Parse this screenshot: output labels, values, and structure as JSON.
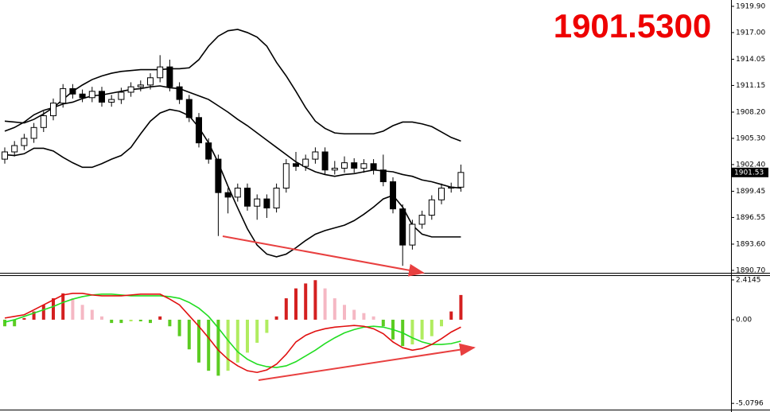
{
  "chart_data": [
    {
      "type": "candlestick",
      "price_display": "1901.5300",
      "current_price": 1901.53,
      "ylim": [
        1890.43,
        1920.6
      ],
      "yticks": [
        {
          "value": 1919.9,
          "label": "1919.90"
        },
        {
          "value": 1917,
          "label": "1917.00"
        },
        1914.05,
        1911.15,
        {
          "value": 1908.2,
          "label": "1908.20"
        },
        {
          "value": 1905.3,
          "label": "1905.30"
        },
        {
          "value": 1902.4,
          "label": "1902.40"
        },
        1899.45,
        1896.55,
        {
          "value": 1893.6,
          "label": "1893.60"
        },
        {
          "value": 1890.7,
          "label": "1890.70"
        }
      ],
      "open": [
        1903.0,
        1903.8,
        1904.5,
        1905.3,
        1906.5,
        1907.8,
        1909.2,
        1910.8,
        1910.2,
        1909.8,
        1910.5,
        1909.3,
        1909.6,
        1910.4,
        1911.0,
        1911.2,
        1912.0,
        1913.2,
        1911.0,
        1909.6,
        1907.6,
        1904.8,
        1903.0,
        1899.3,
        1898.8,
        1899.8,
        1897.8,
        1898.6,
        1897.6,
        1899.8,
        1902.5,
        1902.2,
        1903.0,
        1903.8,
        1901.8,
        1902.0,
        1902.6,
        1902.0,
        1902.5,
        1901.8,
        1900.5,
        1897.5,
        1893.5,
        1895.8,
        1896.8,
        1898.5,
        1899.8,
        1899.9
      ],
      "high": [
        1904.3,
        1905.0,
        1905.8,
        1907.0,
        1908.3,
        1909.7,
        1911.3,
        1911.3,
        1910.7,
        1911.0,
        1911.0,
        1910.1,
        1910.9,
        1911.5,
        1911.7,
        1912.5,
        1914.5,
        1914.0,
        1911.5,
        1910.1,
        1908.1,
        1905.3,
        1903.5,
        1899.8,
        1900.3,
        1900.3,
        1899.1,
        1899.1,
        1900.3,
        1903.0,
        1903.8,
        1903.5,
        1904.3,
        1904.3,
        1902.8,
        1903.3,
        1903.1,
        1903.0,
        1903.0,
        1903.5,
        1901.0,
        1898.0,
        1896.3,
        1897.3,
        1899.0,
        1900.3,
        1900.4,
        1902.4
      ],
      "low": [
        1902.5,
        1903.3,
        1904.0,
        1904.8,
        1906.0,
        1907.3,
        1908.7,
        1909.7,
        1909.3,
        1909.3,
        1908.8,
        1908.8,
        1909.1,
        1909.9,
        1910.5,
        1910.7,
        1911.5,
        1910.5,
        1909.1,
        1907.1,
        1904.3,
        1902.5,
        1894.5,
        1897.0,
        1898.3,
        1897.3,
        1896.3,
        1896.5,
        1897.1,
        1899.3,
        1901.7,
        1901.7,
        1902.5,
        1901.3,
        1901.3,
        1901.5,
        1901.5,
        1901.5,
        1901.3,
        1900.0,
        1897.0,
        1891.2,
        1893.0,
        1895.3,
        1896.3,
        1898.0,
        1899.3,
        1899.4
      ],
      "close": [
        1903.8,
        1904.5,
        1905.3,
        1906.5,
        1907.8,
        1909.2,
        1910.8,
        1910.2,
        1909.8,
        1910.5,
        1909.3,
        1909.6,
        1910.4,
        1911.0,
        1911.2,
        1912.0,
        1913.2,
        1911.0,
        1909.6,
        1907.6,
        1904.8,
        1903.0,
        1899.3,
        1898.8,
        1899.8,
        1897.8,
        1898.6,
        1897.6,
        1899.8,
        1902.5,
        1902.2,
        1903.0,
        1903.8,
        1901.8,
        1902.0,
        1902.6,
        1902.0,
        1902.5,
        1901.8,
        1900.5,
        1897.5,
        1893.5,
        1895.8,
        1896.8,
        1898.5,
        1899.8,
        1899.9,
        1901.53
      ],
      "up_color": "#ffffff",
      "down_color": "#000000",
      "bands": {
        "color": "#000000",
        "upper": [
          1907.2,
          1907.1,
          1907.0,
          1907.4,
          1908.0,
          1908.7,
          1909.6,
          1910.5,
          1911.2,
          1911.8,
          1912.2,
          1912.5,
          1912.7,
          1912.8,
          1912.9,
          1912.9,
          1912.9,
          1913.0,
          1913.0,
          1913.1,
          1914.0,
          1915.5,
          1916.6,
          1917.2,
          1917.35,
          1917.0,
          1916.5,
          1915.5,
          1913.7,
          1912.2,
          1910.5,
          1908.7,
          1907.2,
          1906.4,
          1905.9,
          1905.8,
          1905.8,
          1905.8,
          1905.8,
          1906.1,
          1906.7,
          1907.1,
          1907.1,
          1906.9,
          1906.6,
          1906.0,
          1905.4,
          1905.0
        ],
        "middle": [
          1906.1,
          1906.5,
          1907.1,
          1907.9,
          1908.4,
          1908.7,
          1909.1,
          1909.3,
          1909.7,
          1910.0,
          1910.1,
          1910.3,
          1910.5,
          1910.7,
          1910.8,
          1911.0,
          1911.1,
          1910.9,
          1910.8,
          1910.4,
          1910.0,
          1909.6,
          1908.9,
          1908.2,
          1907.4,
          1906.7,
          1905.9,
          1905.1,
          1904.3,
          1903.5,
          1902.7,
          1902.1,
          1901.6,
          1901.3,
          1901.1,
          1901.3,
          1901.4,
          1901.6,
          1901.8,
          1901.7,
          1901.6,
          1901.3,
          1901.1,
          1900.7,
          1900.5,
          1900.2,
          1899.9,
          1899.8
        ],
        "lower": [
          1903.5,
          1903.4,
          1903.6,
          1904.2,
          1904.2,
          1903.9,
          1903.2,
          1902.6,
          1902.1,
          1902.1,
          1902.5,
          1903.0,
          1903.4,
          1904.3,
          1905.8,
          1907.2,
          1908.1,
          1908.5,
          1908.3,
          1907.8,
          1906.5,
          1904.8,
          1902.6,
          1900.0,
          1897.6,
          1895.3,
          1893.5,
          1892.5,
          1892.2,
          1892.5,
          1893.2,
          1894.0,
          1894.7,
          1895.1,
          1895.4,
          1895.7,
          1896.2,
          1896.9,
          1897.7,
          1898.6,
          1899.0,
          1897.7,
          1895.7,
          1894.7,
          1894.4,
          1894.4,
          1894.4,
          1894.4
        ]
      }
    },
    {
      "type": "macd",
      "ylim": [
        -5.41,
        2.75
      ],
      "yticks": [
        2.4145,
        {
          "value": 0,
          "label": "0.00"
        },
        -5.0796
      ],
      "histogram": [
        -0.4,
        -0.4,
        0.1,
        0.5,
        0.9,
        1.3,
        1.6,
        1.3,
        0.9,
        0.6,
        0.2,
        -0.2,
        -0.2,
        -0.1,
        -0.1,
        -0.2,
        0.2,
        -0.4,
        -1.0,
        -1.8,
        -2.6,
        -3.1,
        -3.4,
        -3.1,
        -2.6,
        -2.0,
        -1.4,
        -0.8,
        0.2,
        1.3,
        1.9,
        2.2,
        2.4,
        1.9,
        1.3,
        0.9,
        0.6,
        0.4,
        0.2,
        -0.4,
        -1.2,
        -1.6,
        -1.5,
        -1.2,
        -1.0,
        -0.4,
        0.5,
        1.5
      ],
      "histogram_colors": {
        "positive_rising": "#d42020",
        "positive_falling": "#f5b8c4",
        "negative_falling": "#5ccc22",
        "negative_rising": "#b0ec60"
      },
      "macd": [
        0.1,
        0.2,
        0.3,
        0.6,
        0.9,
        1.2,
        1.5,
        1.6,
        1.6,
        1.5,
        1.45,
        1.45,
        1.45,
        1.5,
        1.55,
        1.55,
        1.55,
        1.25,
        0.9,
        0.25,
        -0.4,
        -1.1,
        -1.85,
        -2.4,
        -2.8,
        -3.1,
        -3.2,
        -3.05,
        -2.7,
        -2.1,
        -1.35,
        -0.95,
        -0.7,
        -0.55,
        -0.45,
        -0.4,
        -0.35,
        -0.4,
        -0.55,
        -0.85,
        -1.35,
        -1.7,
        -1.85,
        -1.75,
        -1.5,
        -1.15,
        -0.75,
        -0.45
      ],
      "macd_color": "#e01010",
      "signal": [
        -0.15,
        0,
        0.2,
        0.4,
        0.6,
        0.8,
        1.05,
        1.25,
        1.4,
        1.5,
        1.55,
        1.55,
        1.5,
        1.45,
        1.45,
        1.45,
        1.45,
        1.4,
        1.3,
        1.05,
        0.7,
        0.2,
        -0.5,
        -1.25,
        -1.95,
        -2.4,
        -2.7,
        -2.85,
        -2.9,
        -2.8,
        -2.55,
        -2.2,
        -1.85,
        -1.45,
        -1.1,
        -0.8,
        -0.6,
        -0.45,
        -0.4,
        -0.45,
        -0.6,
        -0.8,
        -1.1,
        -1.35,
        -1.5,
        -1.5,
        -1.45,
        -1.3
      ],
      "signal_color": "#22dd22"
    }
  ]
}
